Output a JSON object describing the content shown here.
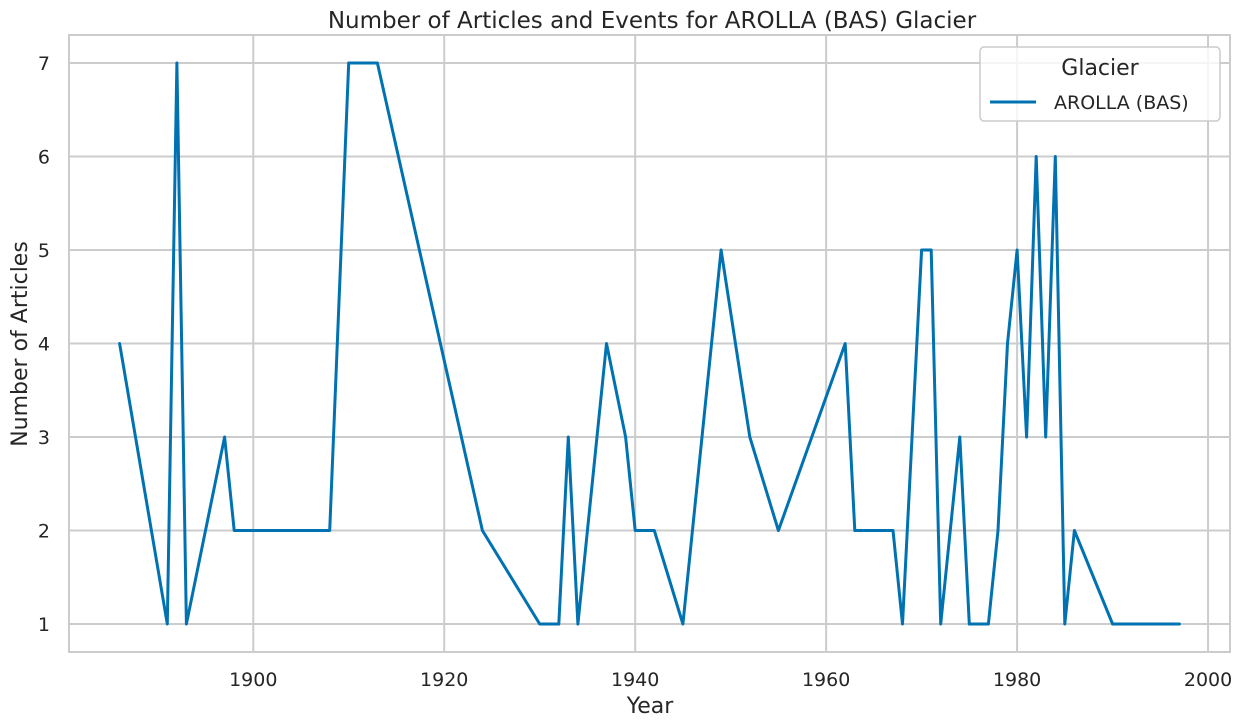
{
  "chart_data": {
    "type": "line",
    "title": "Number of Articles and Events for AROLLA (BAS) Glacier",
    "xlabel": "Year",
    "ylabel": "Number of Articles",
    "xlim": [
      1880.7,
      2002.3
    ],
    "ylim": [
      0.7,
      7.3
    ],
    "xticks": [
      1900,
      1920,
      1940,
      1960,
      1980,
      2000
    ],
    "yticks": [
      1,
      2,
      3,
      4,
      5,
      6,
      7
    ],
    "grid": true,
    "legend": {
      "title": "Glacier",
      "position": "top-right"
    },
    "series": [
      {
        "name": "AROLLA (BAS)",
        "color": "#0072b2",
        "x": [
          1886,
          1891,
          1892,
          1893,
          1897,
          1898,
          1908,
          1910,
          1913,
          1924,
          1930,
          1932,
          1933,
          1934,
          1937,
          1939,
          1940,
          1942,
          1945,
          1949,
          1952,
          1955,
          1962,
          1963,
          1967,
          1968,
          1970,
          1971,
          1972,
          1974,
          1975,
          1977,
          1978,
          1979,
          1980,
          1981,
          1982,
          1983,
          1984,
          1985,
          1986,
          1990,
          1997
        ],
        "y": [
          4,
          1,
          7,
          1,
          3,
          2,
          2,
          7,
          7,
          2,
          1,
          1,
          3,
          1,
          4,
          3,
          2,
          2,
          1,
          5,
          3,
          2,
          4,
          2,
          2,
          1,
          5,
          5,
          1,
          3,
          1,
          1,
          2,
          4,
          5,
          3,
          6,
          3,
          6,
          1,
          2,
          1,
          1
        ]
      }
    ]
  }
}
